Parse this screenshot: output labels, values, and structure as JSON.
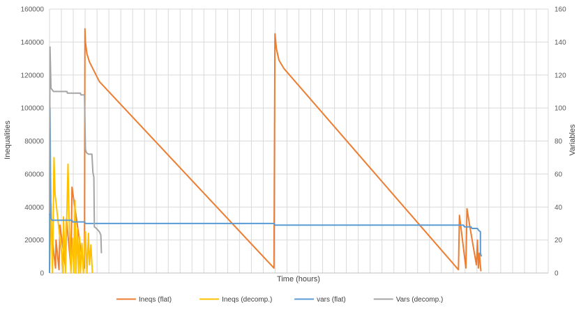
{
  "chart_data": {
    "type": "line",
    "title": "",
    "xlabel": "Time (hours)",
    "ylabel": "Inequalities",
    "y2label": "Variables",
    "x_range": [
      0,
      1
    ],
    "ylim": [
      0,
      160000
    ],
    "y2lim": [
      0,
      160
    ],
    "yticks": [
      "0",
      "20000",
      "40000",
      "60000",
      "80000",
      "100000",
      "120000",
      "140000",
      "160000"
    ],
    "y2ticks": [
      "0",
      "20",
      "40",
      "60",
      "80",
      "100",
      "120",
      "140",
      "160"
    ],
    "grid": true,
    "legend_position": "bottom",
    "series": [
      {
        "name": "Ineqs (flat)",
        "axis": "left",
        "color": "#ED7D31",
        "points": [
          [
            0.0,
            36000
          ],
          [
            0.012,
            3000
          ],
          [
            0.013,
            20000
          ],
          [
            0.019,
            2000
          ],
          [
            0.021,
            29000
          ],
          [
            0.032,
            3000
          ],
          [
            0.034,
            33000
          ],
          [
            0.043,
            3000
          ],
          [
            0.045,
            52000
          ],
          [
            0.062,
            16000
          ],
          [
            0.07,
            3000
          ],
          [
            0.071,
            148000
          ],
          [
            0.072,
            140000
          ],
          [
            0.075,
            133000
          ],
          [
            0.08,
            128000
          ],
          [
            0.085,
            125000
          ],
          [
            0.1,
            116000
          ],
          [
            0.45,
            3000
          ],
          [
            0.452,
            145000
          ],
          [
            0.455,
            136000
          ],
          [
            0.46,
            129000
          ],
          [
            0.47,
            124000
          ],
          [
            0.82,
            2000
          ],
          [
            0.822,
            35000
          ],
          [
            0.835,
            3000
          ],
          [
            0.837,
            39000
          ],
          [
            0.843,
            28000
          ],
          [
            0.856,
            5000
          ],
          [
            0.858,
            20000
          ],
          [
            0.86,
            3000
          ],
          [
            0.862,
            12000
          ],
          [
            0.865,
            1000
          ]
        ]
      },
      {
        "name": "Ineqs (decomp.)",
        "axis": "left",
        "color": "#FFC000",
        "points": [
          [
            0.0,
            0
          ],
          [
            0.003,
            42000
          ],
          [
            0.006,
            0
          ],
          [
            0.009,
            70000
          ],
          [
            0.011,
            48000
          ],
          [
            0.025,
            10000
          ],
          [
            0.027,
            0
          ],
          [
            0.028,
            34000
          ],
          [
            0.032,
            0
          ],
          [
            0.037,
            66000
          ],
          [
            0.039,
            36000
          ],
          [
            0.043,
            0
          ],
          [
            0.046,
            21000
          ],
          [
            0.049,
            0
          ],
          [
            0.051,
            44000
          ],
          [
            0.053,
            0
          ],
          [
            0.056,
            27000
          ],
          [
            0.058,
            0
          ],
          [
            0.06,
            22000
          ],
          [
            0.062,
            0
          ],
          [
            0.065,
            18000
          ],
          [
            0.068,
            0
          ],
          [
            0.072,
            25000
          ],
          [
            0.075,
            0
          ],
          [
            0.078,
            24000
          ],
          [
            0.08,
            5000
          ],
          [
            0.083,
            17000
          ],
          [
            0.086,
            0
          ]
        ]
      },
      {
        "name": "vars (flat)",
        "axis": "right",
        "color": "#5B9BD5",
        "points": [
          [
            0.0,
            0
          ],
          [
            0.001,
            100
          ],
          [
            0.002,
            60
          ],
          [
            0.003,
            33
          ],
          [
            0.005,
            32
          ],
          [
            0.045,
            32
          ],
          [
            0.046,
            31
          ],
          [
            0.07,
            31
          ],
          [
            0.072,
            30
          ],
          [
            0.45,
            30
          ],
          [
            0.452,
            29
          ],
          [
            0.83,
            29
          ],
          [
            0.832,
            28
          ],
          [
            0.845,
            28
          ],
          [
            0.847,
            27
          ],
          [
            0.858,
            27
          ],
          [
            0.86,
            26
          ],
          [
            0.864,
            25
          ],
          [
            0.864,
            12
          ],
          [
            0.866,
            10
          ]
        ]
      },
      {
        "name": "Vars (decomp.)",
        "axis": "right",
        "color": "#A5A5A5",
        "points": [
          [
            0.0,
            36
          ],
          [
            0.001,
            137
          ],
          [
            0.003,
            112
          ],
          [
            0.008,
            110
          ],
          [
            0.035,
            110
          ],
          [
            0.036,
            109
          ],
          [
            0.062,
            109
          ],
          [
            0.063,
            108
          ],
          [
            0.07,
            108
          ],
          [
            0.072,
            75
          ],
          [
            0.074,
            73
          ],
          [
            0.078,
            72
          ],
          [
            0.085,
            72
          ],
          [
            0.087,
            61
          ],
          [
            0.089,
            58
          ],
          [
            0.09,
            28
          ],
          [
            0.094,
            27
          ],
          [
            0.097,
            26
          ],
          [
            0.1,
            25
          ],
          [
            0.103,
            23
          ],
          [
            0.104,
            12
          ]
        ]
      }
    ]
  }
}
